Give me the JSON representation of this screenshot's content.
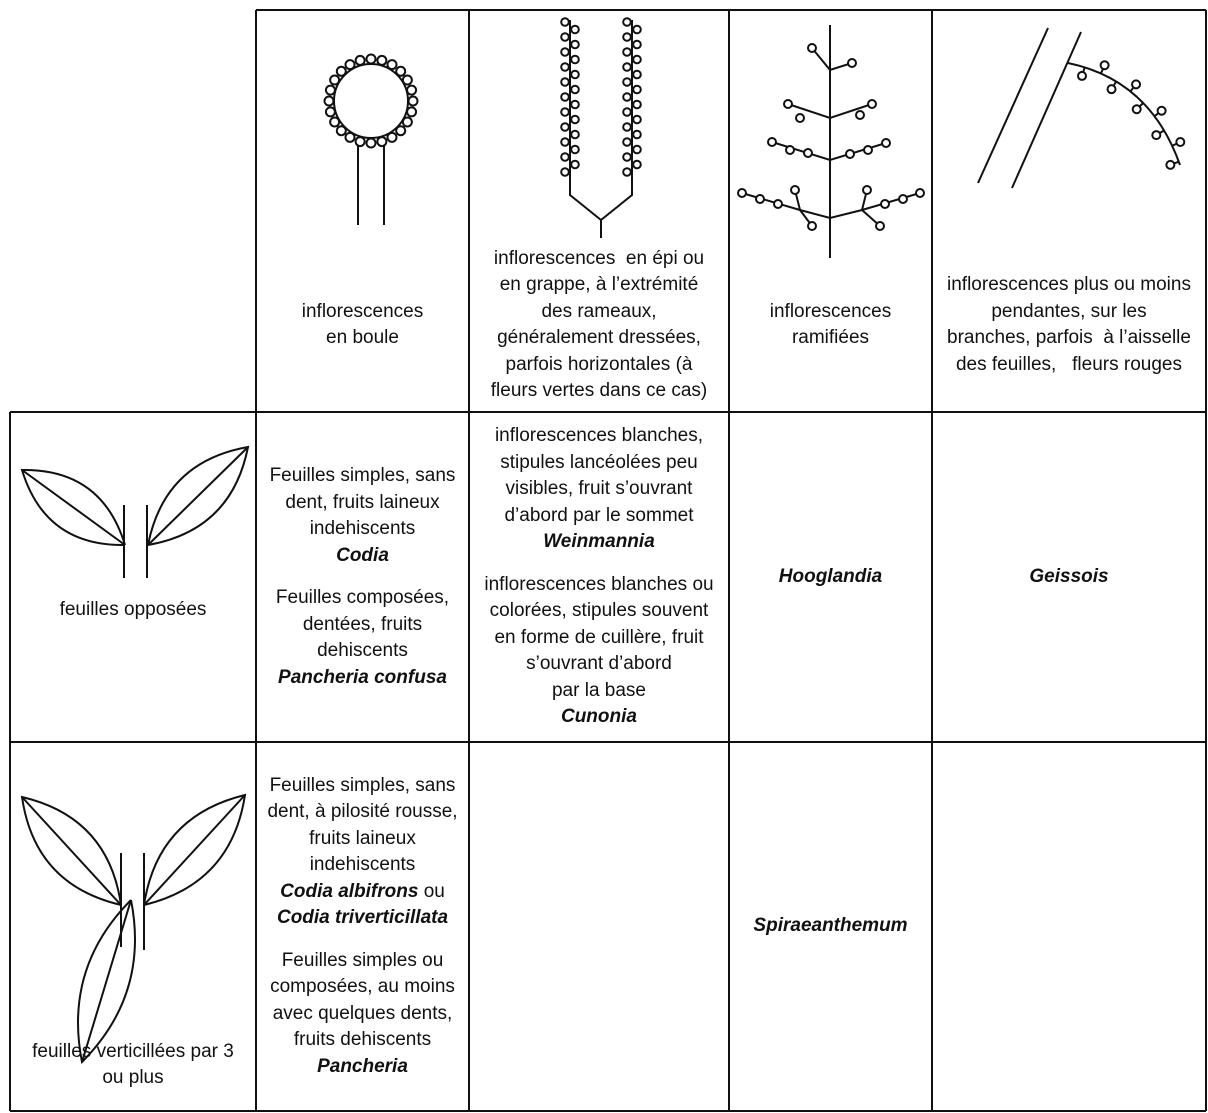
{
  "columns": [
    {
      "lines": [
        "inflorescences",
        "en boule"
      ]
    },
    {
      "lines": [
        "inflorescences  en épi ou",
        "en grappe, à l’extrémité",
        "des rameaux,",
        "généralement dressées,",
        "parfois horizontales (à",
        "fleurs vertes dans ce cas)"
      ]
    },
    {
      "lines": [
        "inflorescences",
        "ramifiées"
      ]
    },
    {
      "lines": [
        "inflorescences plus ou moins",
        "pendantes, sur les",
        "branches, parfois  à l’aisselle",
        "des feuilles,   fleurs rouges"
      ]
    }
  ],
  "rows": [
    {
      "lines": [
        "feuilles opposées"
      ],
      "cells": [
        [
          {
            "lines": [
              "Feuilles simples, sans",
              "dent, fruits laineux",
              "indehiscents"
            ],
            "genus": [
              {
                "name": "Codia"
              }
            ]
          },
          {
            "lines": [
              "Feuilles composées,",
              "dentées, fruits",
              "dehiscents"
            ],
            "genus": [
              {
                "name": "Pancheria confusa"
              }
            ]
          }
        ],
        [
          {
            "lines": [
              "inflorescences blanches,",
              "stipules lancéolées peu",
              "visibles, fruit s’ouvrant",
              "d’abord par le sommet"
            ],
            "genus": [
              {
                "name": "Weinmannia"
              }
            ]
          },
          {
            "lines": [
              "inflorescences blanches ou",
              "colorées, stipules souvent",
              "en forme de cuillère, fruit",
              "s’ouvrant d’abord",
              "par la base"
            ],
            "genus": [
              {
                "name": "Cunonia"
              }
            ]
          }
        ],
        [
          {
            "genus": [
              {
                "name": "Hooglandia"
              }
            ]
          }
        ],
        [
          {
            "genus": [
              {
                "name": "Geissois"
              }
            ]
          }
        ]
      ]
    },
    {
      "lines": [
        "feuilles verticillées par 3",
        "ou plus"
      ],
      "cells": [
        [
          {
            "lines": [
              "Feuilles simples, sans",
              "dent, à pilosité rousse,",
              "fruits laineux",
              "indehiscents"
            ],
            "genus": [
              {
                "name": "Codia albifrons",
                "after": "ou"
              },
              {
                "name": "Codia triverticillata"
              }
            ]
          },
          {
            "lines": [
              "Feuilles simples ou",
              "composées, au moins",
              "avec quelques dents,",
              "fruits dehiscents"
            ],
            "genus": [
              {
                "name": "Pancheria"
              }
            ]
          }
        ],
        [],
        [
          {
            "genus": [
              {
                "name": "Spiraeanthemum"
              }
            ]
          }
        ],
        []
      ]
    }
  ]
}
